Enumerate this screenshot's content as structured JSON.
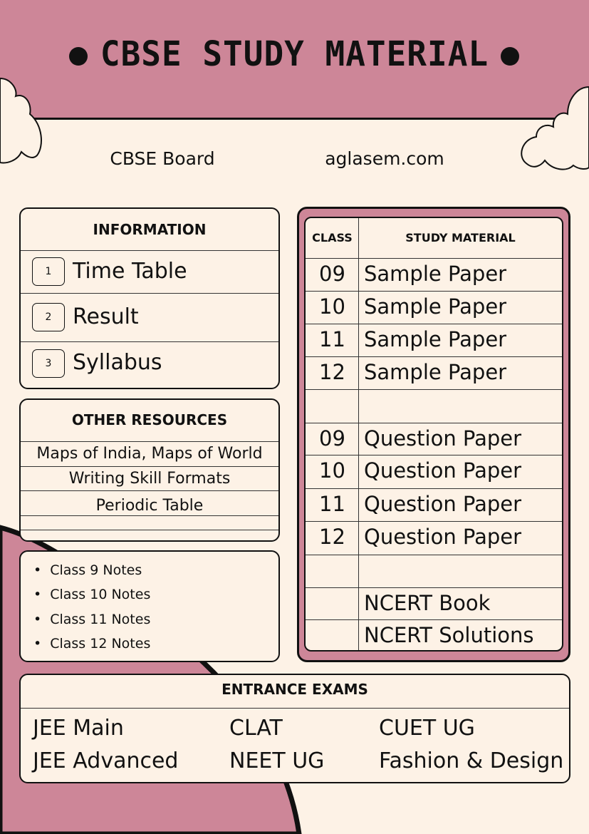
{
  "title": "CBSE STUDY MATERIAL",
  "subtitle_left": "CBSE Board",
  "subtitle_right": "aglasem.com",
  "colors": {
    "pink": "#cd8698",
    "cream": "#fdf2e6",
    "ink": "#111111"
  },
  "information": {
    "heading": "INFORMATION",
    "items": [
      {
        "num": "1",
        "label": "Time Table"
      },
      {
        "num": "2",
        "label": "Result"
      },
      {
        "num": "3",
        "label": "Syllabus"
      }
    ]
  },
  "other_resources": {
    "heading": "OTHER RESOURCES",
    "items": [
      "Maps of India, Maps of World",
      "Writing Skill Formats",
      "Periodic Table"
    ]
  },
  "notes": [
    "Class 9 Notes",
    "Class 10 Notes",
    "Class 11 Notes",
    "Class 12 Notes"
  ],
  "study_table": {
    "headers": [
      "CLASS",
      "STUDY MATERIAL"
    ],
    "rows": [
      [
        "09",
        "Sample Paper"
      ],
      [
        "10",
        "Sample Paper"
      ],
      [
        "11",
        "Sample Paper"
      ],
      [
        "12",
        "Sample Paper"
      ],
      [
        "",
        ""
      ],
      [
        "09",
        "Question Paper"
      ],
      [
        "10",
        "Question Paper"
      ],
      [
        "11",
        "Question Paper"
      ],
      [
        "12",
        "Question Paper"
      ],
      [
        "",
        ""
      ],
      [
        "",
        "NCERT Book"
      ],
      [
        "",
        "NCERT Solutions"
      ]
    ]
  },
  "entrance": {
    "heading": "ENTRANCE EXAMS",
    "items": [
      "JEE Main",
      "CLAT",
      "CUET UG",
      "JEE Advanced",
      "NEET UG",
      "Fashion & Design"
    ]
  }
}
